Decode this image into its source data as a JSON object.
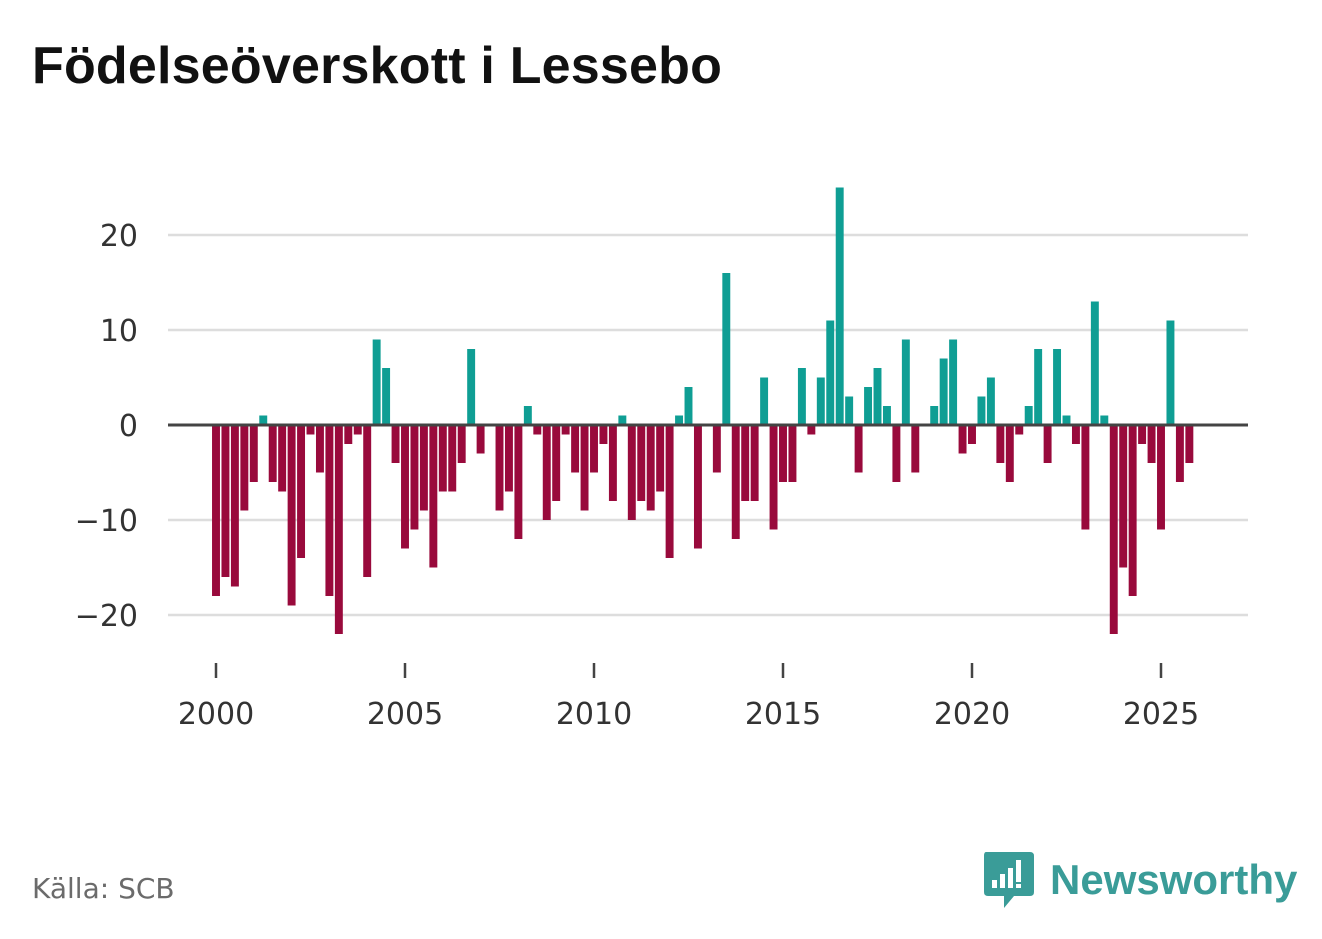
{
  "title": "Födelseöverskott i Lessebo",
  "source": "Källa: SCB",
  "brand": {
    "name": "Newsworthy",
    "icon": "newsworthy-logo-icon"
  },
  "colors": {
    "positive": "#0f9e94",
    "negative": "#990a3c",
    "grid": "#dddddd",
    "zero": "#444444",
    "brand": "#3a9c98"
  },
  "chart_data": {
    "type": "bar",
    "title": "Födelseöverskott i Lessebo",
    "xlabel": "",
    "ylabel": "",
    "ylim": [
      -25,
      25
    ],
    "xlim": [
      1999.2,
      2027.2
    ],
    "grid": true,
    "x_ticks": [
      2000,
      2005,
      2010,
      2015,
      2020,
      2025
    ],
    "y_ticks": [
      -20,
      -10,
      0,
      10,
      20
    ],
    "y_tick_labels": [
      "−20",
      "−10",
      "0",
      "10",
      "20"
    ],
    "bar_period": 0.25,
    "series": [
      {
        "name": "Födelseöverskott",
        "start": 2000.0,
        "values": [
          -18,
          -16,
          -17,
          -9,
          -6,
          1,
          -6,
          -7,
          -19,
          -14,
          -1,
          -5,
          -18,
          -22,
          -2,
          -1,
          -16,
          9,
          6,
          -4,
          -13,
          -11,
          -9,
          -15,
          -7,
          -7,
          -4,
          8,
          -3,
          0,
          -9,
          -7,
          -12,
          2,
          -1,
          -10,
          -8,
          -1,
          -5,
          -9,
          -5,
          -2,
          -8,
          1,
          -10,
          -8,
          -9,
          -7,
          -14,
          1,
          4,
          -13,
          0,
          -5,
          16,
          -12,
          -8,
          -8,
          5,
          -11,
          -6,
          -6,
          6,
          -1,
          5,
          11,
          25,
          3,
          -5,
          4,
          6,
          2,
          -6,
          9,
          -5,
          0,
          2,
          7,
          9,
          -3,
          -2,
          3,
          5,
          -4,
          -6,
          -1,
          2,
          8,
          -4,
          8,
          1,
          -2,
          -11,
          13,
          1,
          -22,
          -15,
          -18,
          -2,
          -4,
          -11,
          11,
          -6,
          -4
        ]
      }
    ]
  }
}
